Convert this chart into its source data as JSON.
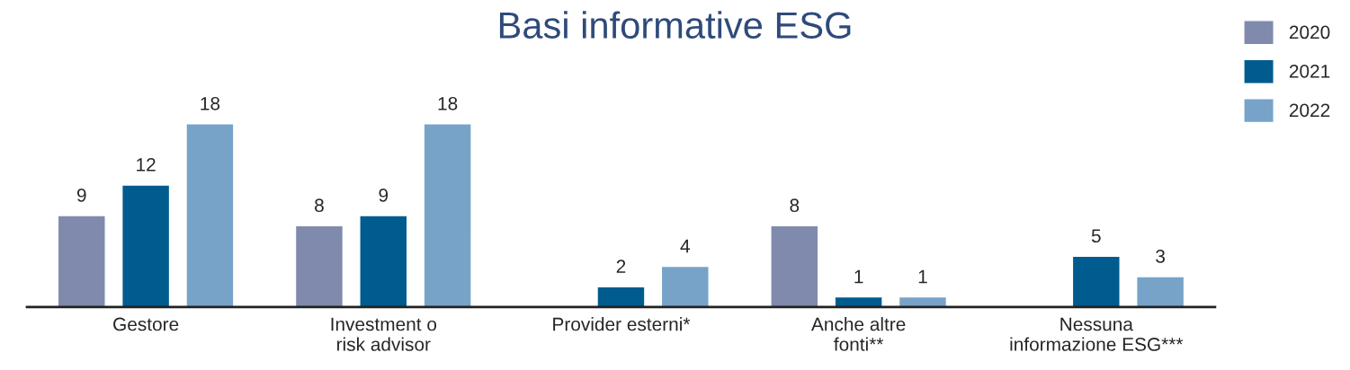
{
  "chart_data": {
    "type": "bar",
    "title": "Basi informative ESG",
    "categories": [
      "Gestore",
      "Investment o\nrisk advisor",
      "Provider esterni*",
      "Anche altre\nfonti**",
      "Nessuna\ninformazione ESG***"
    ],
    "series": [
      {
        "name": "2020",
        "color": "#7f8aad",
        "values": [
          9,
          8,
          null,
          8,
          null
        ]
      },
      {
        "name": "2021",
        "color": "#005b8e",
        "values": [
          12,
          9,
          2,
          1,
          5
        ]
      },
      {
        "name": "2022",
        "color": "#77a3c8",
        "values": [
          18,
          18,
          4,
          1,
          3
        ]
      }
    ],
    "data_labels": true,
    "legend": "top right",
    "grid": false
  }
}
